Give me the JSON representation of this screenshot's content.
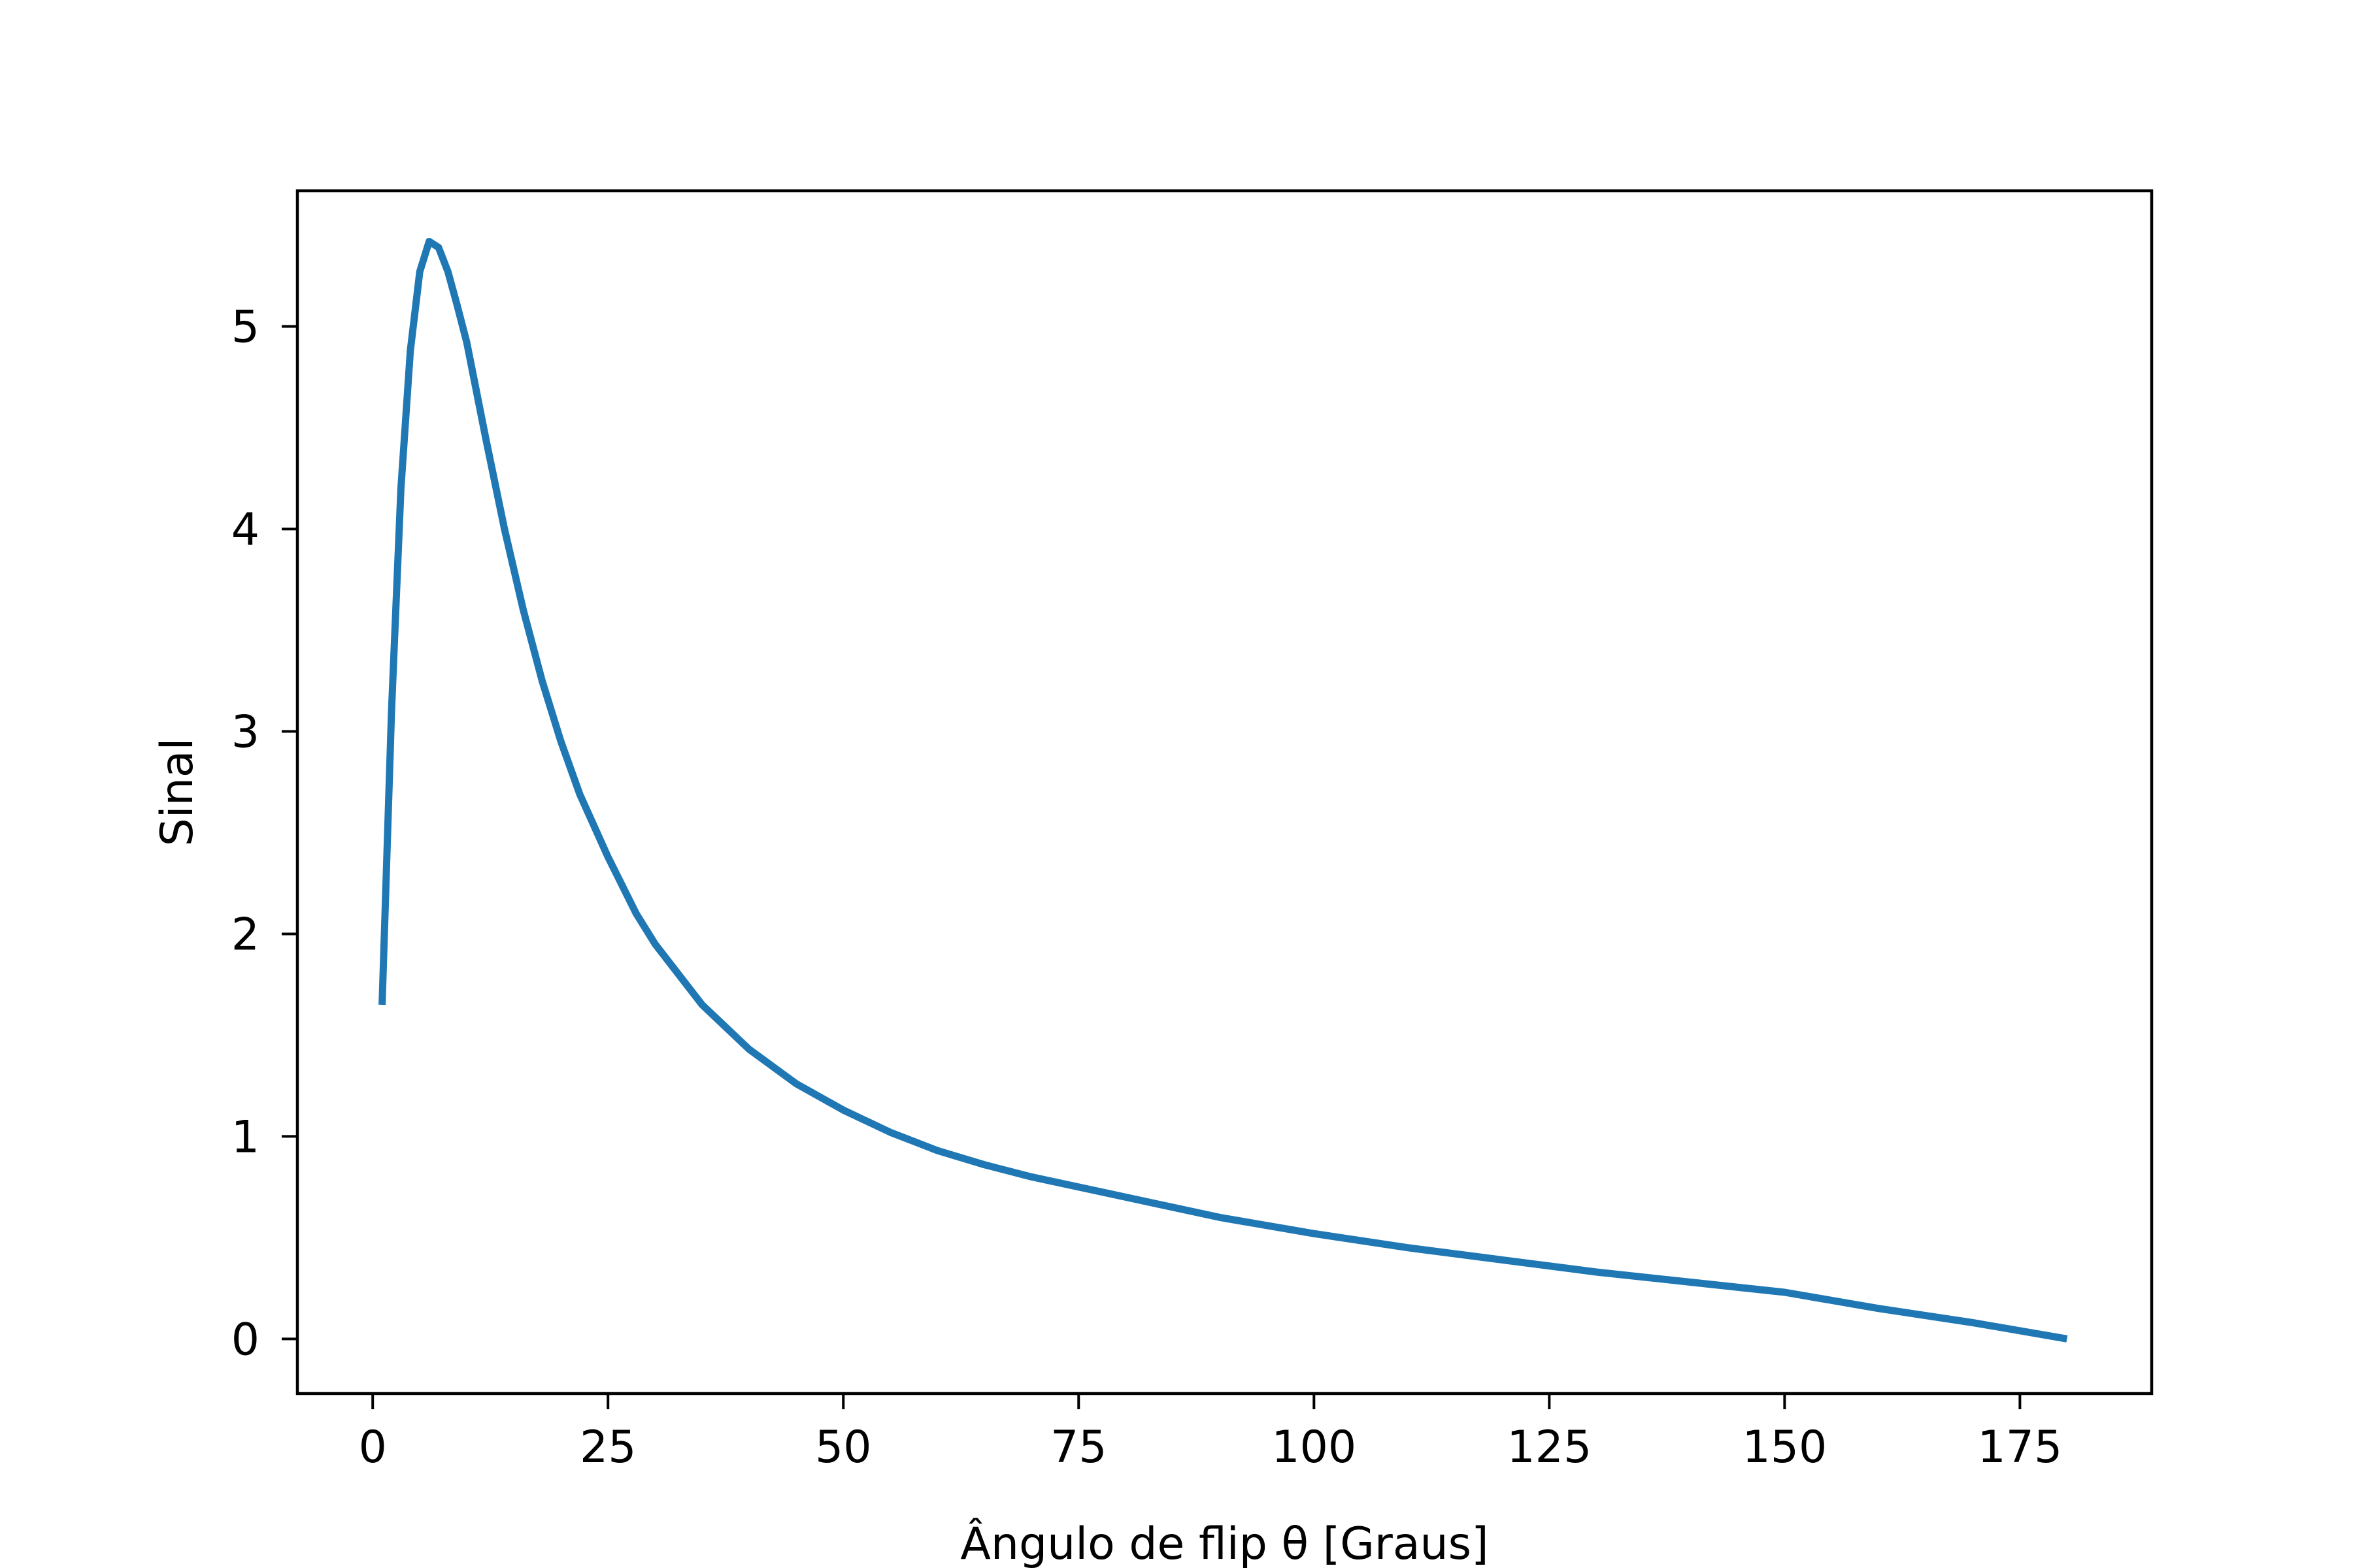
{
  "chart_data": {
    "type": "line",
    "title": "",
    "xlabel": "Ângulo de flip θ [Graus]",
    "ylabel": "Sinal",
    "xlim": [
      -8,
      189
    ],
    "ylim": [
      -0.27,
      5.67
    ],
    "xticks": [
      0,
      25,
      50,
      75,
      100,
      125,
      150,
      175
    ],
    "yticks": [
      0,
      1,
      2,
      3,
      4,
      5
    ],
    "grid": false,
    "legend": "none",
    "series": [
      {
        "color": "#1f77b4",
        "x": [
          1,
          2,
          3,
          4,
          5,
          6,
          7,
          8,
          9,
          10,
          12,
          14,
          16,
          18,
          20,
          22,
          25,
          28,
          30,
          35,
          40,
          45,
          50,
          55,
          60,
          65,
          70,
          75,
          80,
          90,
          100,
          110,
          120,
          130,
          140,
          150,
          160,
          170,
          180
        ],
        "y": [
          1.65,
          3.1,
          4.2,
          4.88,
          5.27,
          5.42,
          5.39,
          5.27,
          5.1,
          4.92,
          4.45,
          4.0,
          3.6,
          3.25,
          2.95,
          2.69,
          2.38,
          2.1,
          1.95,
          1.65,
          1.43,
          1.26,
          1.13,
          1.02,
          0.93,
          0.86,
          0.8,
          0.75,
          0.7,
          0.6,
          0.52,
          0.45,
          0.39,
          0.33,
          0.28,
          0.23,
          0.15,
          0.08,
          0.0
        ]
      }
    ]
  }
}
